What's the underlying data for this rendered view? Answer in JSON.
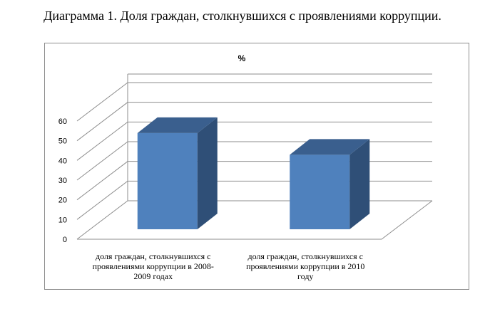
{
  "figure": {
    "title": "Диаграмма 1. Доля граждан, столкнувшихся с проявлениями коррупции."
  },
  "chart_data": {
    "type": "bar",
    "title": "%",
    "categories": [
      [
        "доля граждан, столкнувшихся с",
        "проявлениями коррупции в 2008-",
        "2009 годах"
      ],
      [
        "доля граждан, столкнувшихся с",
        "проявлениями коррупции в 2010",
        "году"
      ]
    ],
    "values": [
      51,
      40
    ],
    "yticks": [
      "0",
      "10",
      "20",
      "30",
      "40",
      "50",
      "60"
    ],
    "ylim": [
      0,
      60
    ],
    "grid": true,
    "legend": "none",
    "three_d": true,
    "colors": {
      "front": "#4f81bd",
      "side": "#2f4f77",
      "top": "#3a5f8e"
    }
  }
}
